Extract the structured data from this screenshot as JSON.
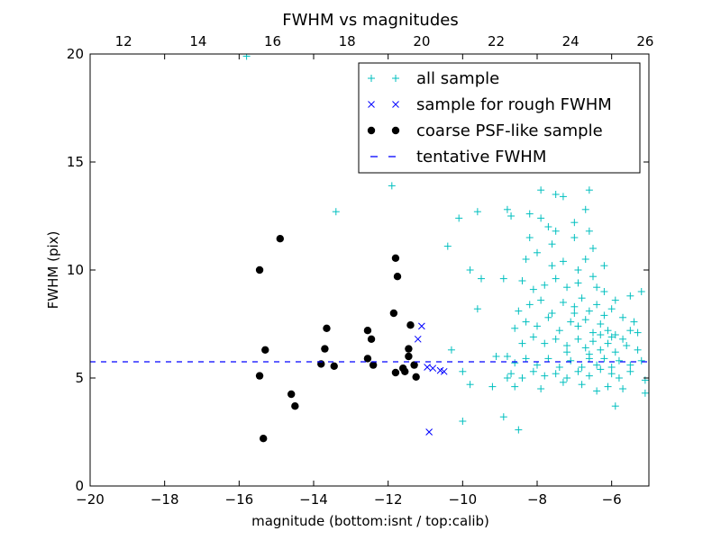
{
  "chart_data": {
    "type": "scatter",
    "title": "FWHM vs magnitudes",
    "xlabel": "magnitude (bottom:isnt / top:calib)",
    "ylabel": "FWHM (pix)",
    "xlim": [
      -20,
      -5
    ],
    "ylim": [
      0,
      20
    ],
    "top_xlim": [
      11.1,
      26.1
    ],
    "x_ticks": [
      -20,
      -18,
      -16,
      -14,
      -12,
      -10,
      -8,
      -6
    ],
    "y_ticks": [
      0,
      5,
      10,
      15,
      20
    ],
    "top_x_ticks": [
      12,
      14,
      16,
      18,
      20,
      22,
      24,
      26
    ],
    "grid": false,
    "legend_position": "top-right",
    "legend": [
      {
        "label": "all sample",
        "color": "#00bfbf",
        "marker": "plus"
      },
      {
        "label": "sample for rough FWHM",
        "color": "#0000ff",
        "marker": "x"
      },
      {
        "label": "coarse PSF-like sample",
        "color": "#000000",
        "marker": "circle"
      },
      {
        "label": "tentative FWHM",
        "color": "#0000ff",
        "marker": "dash"
      }
    ],
    "tentative_fwhm": 5.75,
    "series": [
      {
        "name": "all sample",
        "marker": "plus",
        "color": "#00bfbf",
        "points": [
          [
            -15.8,
            19.9
          ],
          [
            -13.4,
            12.7
          ],
          [
            -11.9,
            13.9
          ],
          [
            -10.1,
            12.4
          ],
          [
            -9.6,
            12.7
          ],
          [
            -10.4,
            11.1
          ],
          [
            -9.5,
            9.6
          ],
          [
            -9.8,
            10.0
          ],
          [
            -9.6,
            8.2
          ],
          [
            -10.3,
            6.3
          ],
          [
            -10.0,
            5.3
          ],
          [
            -9.8,
            4.7
          ],
          [
            -10.0,
            3.0
          ],
          [
            -9.1,
            6.0
          ],
          [
            -8.8,
            5.0
          ],
          [
            -9.2,
            4.6
          ],
          [
            -8.9,
            3.2
          ],
          [
            -8.5,
            2.6
          ],
          [
            -8.9,
            9.6
          ],
          [
            -8.7,
            12.5
          ],
          [
            -8.8,
            12.8
          ],
          [
            -8.2,
            12.6
          ],
          [
            -7.9,
            12.4
          ],
          [
            -7.7,
            12.0
          ],
          [
            -7.5,
            13.5
          ],
          [
            -7.3,
            13.4
          ],
          [
            -7.0,
            12.2
          ],
          [
            -6.6,
            13.7
          ],
          [
            -6.7,
            12.8
          ],
          [
            -7.9,
            13.7
          ],
          [
            -7.5,
            11.8
          ],
          [
            -7.6,
            11.2
          ],
          [
            -7.0,
            11.5
          ],
          [
            -6.5,
            11.0
          ],
          [
            -8.2,
            11.5
          ],
          [
            -8.3,
            10.5
          ],
          [
            -8.0,
            10.8
          ],
          [
            -7.3,
            10.4
          ],
          [
            -6.7,
            10.5
          ],
          [
            -8.4,
            9.5
          ],
          [
            -8.1,
            9.1
          ],
          [
            -7.8,
            9.3
          ],
          [
            -7.5,
            9.6
          ],
          [
            -7.2,
            9.2
          ],
          [
            -6.9,
            9.4
          ],
          [
            -6.5,
            9.7
          ],
          [
            -6.2,
            9.0
          ],
          [
            -5.9,
            8.6
          ],
          [
            -5.5,
            8.8
          ],
          [
            -5.2,
            9.0
          ],
          [
            -8.5,
            8.1
          ],
          [
            -8.2,
            8.4
          ],
          [
            -7.9,
            8.6
          ],
          [
            -7.6,
            8.0
          ],
          [
            -7.3,
            8.5
          ],
          [
            -7.0,
            8.3
          ],
          [
            -6.8,
            8.7
          ],
          [
            -6.6,
            8.1
          ],
          [
            -6.4,
            8.4
          ],
          [
            -6.2,
            7.9
          ],
          [
            -6.0,
            8.2
          ],
          [
            -5.7,
            7.8
          ],
          [
            -5.4,
            7.6
          ],
          [
            -5.3,
            7.1
          ],
          [
            -8.6,
            7.3
          ],
          [
            -8.3,
            7.6
          ],
          [
            -8.0,
            7.4
          ],
          [
            -7.7,
            7.8
          ],
          [
            -7.4,
            7.2
          ],
          [
            -7.1,
            7.6
          ],
          [
            -6.9,
            7.4
          ],
          [
            -6.7,
            7.7
          ],
          [
            -6.5,
            7.1
          ],
          [
            -6.3,
            7.5
          ],
          [
            -6.1,
            7.2
          ],
          [
            -5.9,
            7.0
          ],
          [
            -5.7,
            6.8
          ],
          [
            -5.5,
            7.2
          ],
          [
            -8.4,
            6.6
          ],
          [
            -8.1,
            6.9
          ],
          [
            -7.8,
            6.6
          ],
          [
            -7.5,
            6.8
          ],
          [
            -7.2,
            6.5
          ],
          [
            -6.9,
            6.8
          ],
          [
            -6.7,
            6.4
          ],
          [
            -6.5,
            6.7
          ],
          [
            -6.3,
            6.3
          ],
          [
            -6.1,
            6.6
          ],
          [
            -5.9,
            6.2
          ],
          [
            -5.6,
            6.5
          ],
          [
            -5.3,
            6.3
          ],
          [
            -8.8,
            6.0
          ],
          [
            -8.6,
            5.7
          ],
          [
            -8.3,
            5.9
          ],
          [
            -8.0,
            5.6
          ],
          [
            -7.7,
            5.9
          ],
          [
            -7.4,
            5.5
          ],
          [
            -7.1,
            5.8
          ],
          [
            -6.8,
            5.5
          ],
          [
            -6.6,
            5.9
          ],
          [
            -6.4,
            5.6
          ],
          [
            -6.2,
            5.9
          ],
          [
            -6.0,
            5.5
          ],
          [
            -5.8,
            5.8
          ],
          [
            -5.5,
            5.6
          ],
          [
            -5.2,
            5.8
          ],
          [
            -8.7,
            5.2
          ],
          [
            -8.4,
            5.0
          ],
          [
            -8.1,
            5.3
          ],
          [
            -7.8,
            5.1
          ],
          [
            -7.5,
            5.2
          ],
          [
            -7.2,
            5.0
          ],
          [
            -6.9,
            5.3
          ],
          [
            -6.6,
            5.1
          ],
          [
            -6.3,
            5.4
          ],
          [
            -6.0,
            5.2
          ],
          [
            -5.8,
            5.0
          ],
          [
            -5.5,
            5.3
          ],
          [
            -5.1,
            4.9
          ],
          [
            -8.6,
            4.6
          ],
          [
            -7.9,
            4.5
          ],
          [
            -7.3,
            4.8
          ],
          [
            -6.8,
            4.7
          ],
          [
            -6.4,
            4.4
          ],
          [
            -6.1,
            4.6
          ],
          [
            -5.7,
            4.5
          ],
          [
            -5.1,
            4.3
          ],
          [
            -5.9,
            3.7
          ],
          [
            -6.6,
            11.8
          ],
          [
            -6.2,
            10.2
          ],
          [
            -6.9,
            10.0
          ],
          [
            -7.6,
            10.2
          ],
          [
            -6.4,
            9.2
          ],
          [
            -7.0,
            8.0
          ],
          [
            -6.3,
            7.0
          ],
          [
            -6.6,
            6.1
          ],
          [
            -7.2,
            6.2
          ],
          [
            -6.0,
            6.9
          ]
        ]
      },
      {
        "name": "sample for rough FWHM",
        "marker": "x",
        "color": "#0000ff",
        "points": [
          [
            -11.1,
            7.4
          ],
          [
            -11.2,
            6.8
          ],
          [
            -10.95,
            5.5
          ],
          [
            -10.8,
            5.45
          ],
          [
            -10.6,
            5.35
          ],
          [
            -10.5,
            5.3
          ],
          [
            -10.9,
            2.5
          ]
        ]
      },
      {
        "name": "coarse PSF-like sample",
        "marker": "circle",
        "color": "#000000",
        "points": [
          [
            -14.9,
            11.45
          ],
          [
            -15.45,
            10.0
          ],
          [
            -15.3,
            6.3
          ],
          [
            -15.45,
            5.1
          ],
          [
            -15.35,
            2.2
          ],
          [
            -14.6,
            4.25
          ],
          [
            -14.5,
            3.7
          ],
          [
            -13.65,
            7.3
          ],
          [
            -13.7,
            6.35
          ],
          [
            -13.8,
            5.65
          ],
          [
            -13.45,
            5.55
          ],
          [
            -12.55,
            7.2
          ],
          [
            -12.45,
            6.8
          ],
          [
            -12.55,
            5.9
          ],
          [
            -12.4,
            5.6
          ],
          [
            -11.8,
            10.55
          ],
          [
            -11.75,
            9.7
          ],
          [
            -11.85,
            8.0
          ],
          [
            -11.4,
            7.45
          ],
          [
            -11.45,
            6.35
          ],
          [
            -11.45,
            6.0
          ],
          [
            -11.6,
            5.45
          ],
          [
            -11.55,
            5.3
          ],
          [
            -11.8,
            5.25
          ],
          [
            -11.3,
            5.6
          ],
          [
            -11.25,
            5.05
          ]
        ]
      }
    ]
  }
}
